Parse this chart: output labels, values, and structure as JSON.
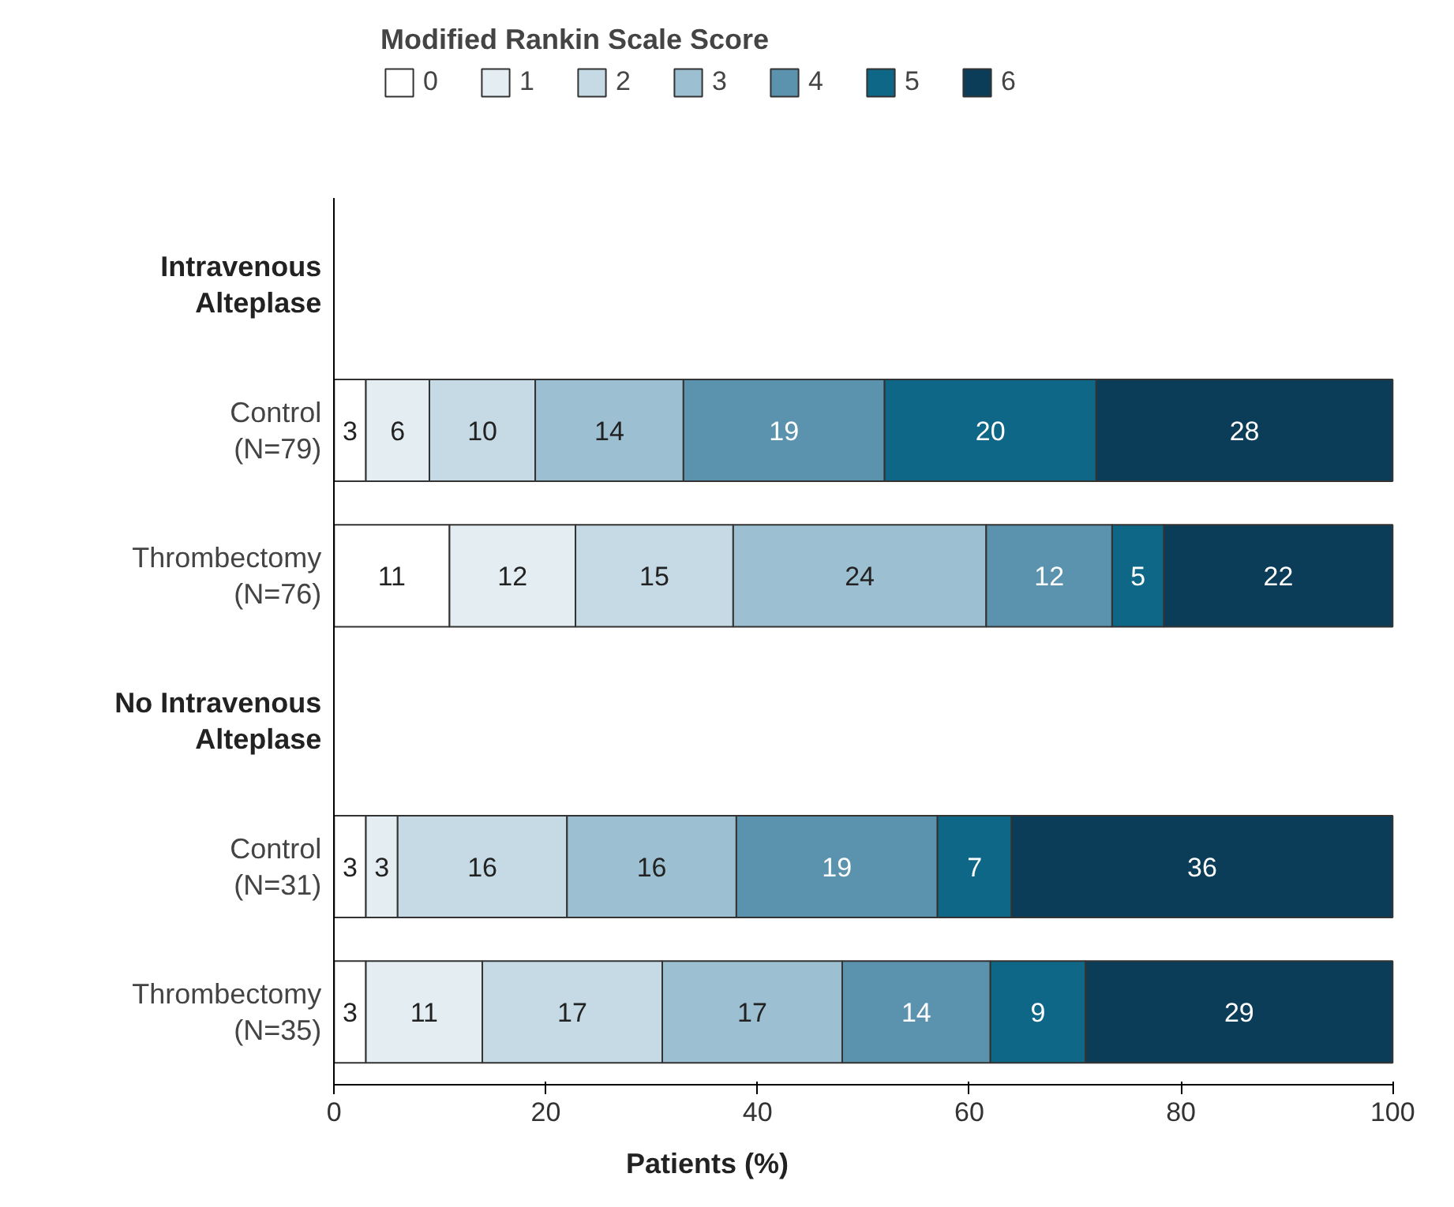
{
  "chart_data": {
    "type": "bar",
    "orientation": "horizontal",
    "stacked": true,
    "legend": "top",
    "legend_title": "Modified Rankin Scale Score",
    "xlabel": "Patients (%)",
    "xlim": [
      0,
      100
    ],
    "xticks": [
      0,
      20,
      40,
      60,
      80,
      100
    ],
    "grid": false,
    "categories": [
      "Intravenous\nAlteplase",
      "Control\n(N=79)",
      "Thrombectomy\n(N=76)",
      "No Intravenous\nAlteplase",
      "Control\n(N=31)",
      "Thrombectomy\n(N=35)"
    ],
    "series": [
      {
        "name": "0",
        "color": "#ffffff",
        "values": [
          null,
          3,
          10.9,
          null,
          3,
          3
        ],
        "value_labels": [
          null,
          "3",
          "11",
          null,
          "3",
          "3"
        ]
      },
      {
        "name": "1",
        "color": "#e3edf2",
        "values": [
          null,
          6,
          11.9,
          null,
          3,
          11
        ],
        "value_labels": [
          null,
          "6",
          "12",
          null,
          "3",
          "11"
        ]
      },
      {
        "name": "2",
        "color": "#c5dae4",
        "values": [
          null,
          10,
          14.9,
          null,
          16,
          17
        ],
        "value_labels": [
          null,
          "10",
          "15",
          null,
          "16",
          "17"
        ]
      },
      {
        "name": "3",
        "color": "#9cc0d2",
        "values": [
          null,
          14,
          23.9,
          null,
          16,
          17
        ],
        "value_labels": [
          null,
          "14",
          "24",
          null,
          "16",
          "17"
        ]
      },
      {
        "name": "4",
        "color": "#5b92ad",
        "values": [
          null,
          19,
          11.9,
          null,
          19,
          14
        ],
        "value_labels": [
          null,
          "19",
          "12",
          null,
          "19",
          "14"
        ]
      },
      {
        "name": "5",
        "color": "#0e6787",
        "values": [
          null,
          20,
          4.9,
          null,
          7,
          9
        ],
        "value_labels": [
          null,
          "20",
          "5",
          null,
          "7",
          "9"
        ]
      },
      {
        "name": "6",
        "color": "#0b3d58",
        "values": [
          null,
          28,
          21.6,
          null,
          36,
          29
        ],
        "value_labels": [
          null,
          "28",
          "22",
          null,
          "36",
          "29"
        ]
      }
    ]
  }
}
